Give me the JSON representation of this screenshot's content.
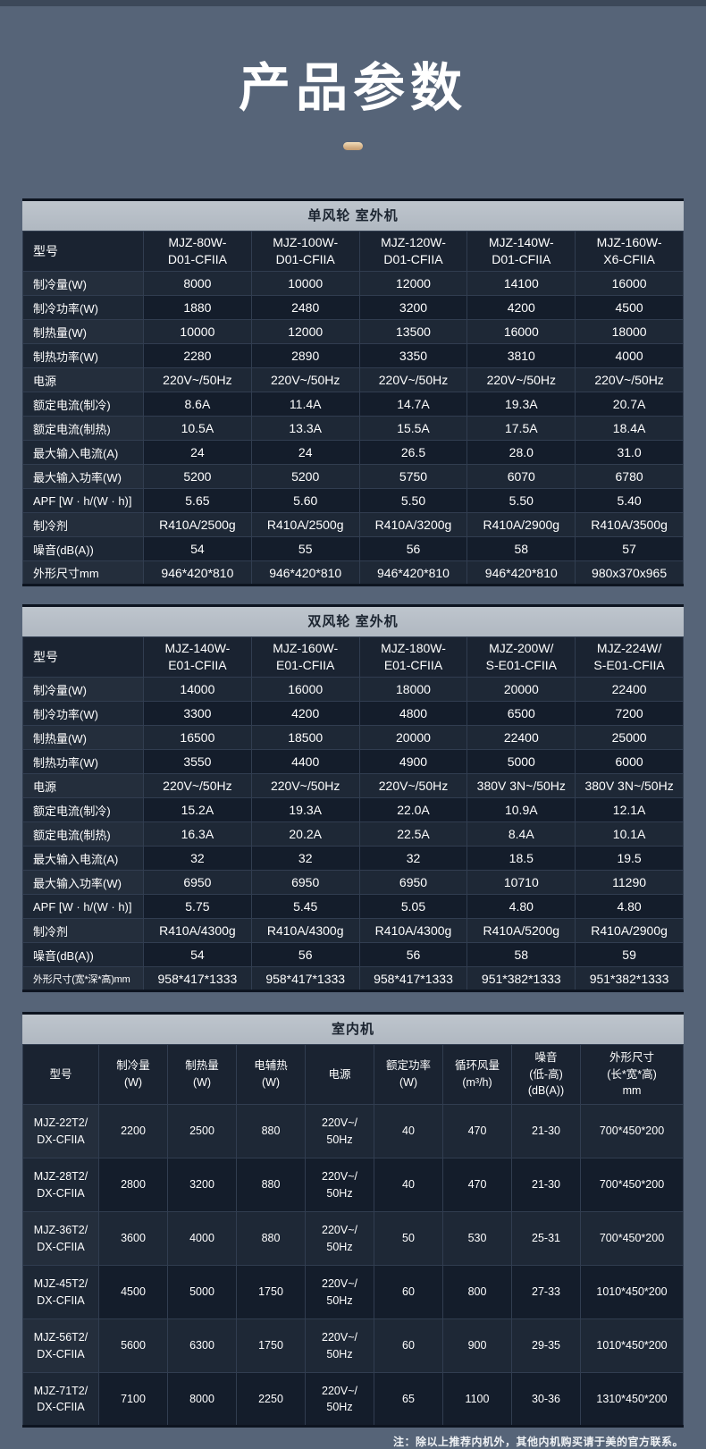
{
  "page": {
    "title": "产品参数",
    "note": "注：除以上推荐内机外，其他内机购买请于美的官方联系。"
  },
  "colors": {
    "page_background": "#566478",
    "section_header_bg": "#b4bcc4",
    "section_header_text": "#1b2430",
    "table_header_bg": "#1a2331",
    "row_odd_bg": "#1e2836",
    "row_even_bg": "#141d2b",
    "grid_border": "#313d50",
    "accent_pill": "#d9b68c",
    "text": "#ffffff"
  },
  "tables": {
    "outdoor_single": {
      "title": "单风轮 室外机",
      "model_label": "型号",
      "models": [
        "MJZ-80W-\nD01-CFIIA",
        "MJZ-100W-\nD01-CFIIA",
        "MJZ-120W-\nD01-CFIIA",
        "MJZ-140W-\nD01-CFIIA",
        "MJZ-160W-\nX6-CFIIA"
      ],
      "rows": [
        {
          "label": "制冷量(W)",
          "values": [
            "8000",
            "10000",
            "12000",
            "14100",
            "16000"
          ]
        },
        {
          "label": "制冷功率(W)",
          "values": [
            "1880",
            "2480",
            "3200",
            "4200",
            "4500"
          ]
        },
        {
          "label": "制热量(W)",
          "values": [
            "10000",
            "12000",
            "13500",
            "16000",
            "18000"
          ]
        },
        {
          "label": "制热功率(W)",
          "values": [
            "2280",
            "2890",
            "3350",
            "3810",
            "4000"
          ]
        },
        {
          "label": "电源",
          "values": [
            "220V~/50Hz",
            "220V~/50Hz",
            "220V~/50Hz",
            "220V~/50Hz",
            "220V~/50Hz"
          ]
        },
        {
          "label": "额定电流(制冷)",
          "values": [
            "8.6A",
            "11.4A",
            "14.7A",
            "19.3A",
            "20.7A"
          ]
        },
        {
          "label": "额定电流(制热)",
          "values": [
            "10.5A",
            "13.3A",
            "15.5A",
            "17.5A",
            "18.4A"
          ]
        },
        {
          "label": "最大输入电流(A)",
          "values": [
            "24",
            "24",
            "26.5",
            "28.0",
            "31.0"
          ]
        },
        {
          "label": "最大输入功率(W)",
          "values": [
            "5200",
            "5200",
            "5750",
            "6070",
            "6780"
          ]
        },
        {
          "label": "APF [W · h/(W · h)]",
          "values": [
            "5.65",
            "5.60",
            "5.50",
            "5.50",
            "5.40"
          ]
        },
        {
          "label": "制冷剂",
          "values": [
            "R410A/2500g",
            "R410A/2500g",
            "R410A/3200g",
            "R410A/2900g",
            "R410A/3500g"
          ]
        },
        {
          "label": "噪音(dB(A))",
          "values": [
            "54",
            "55",
            "56",
            "58",
            "57"
          ]
        },
        {
          "label": "外形尺寸mm",
          "values": [
            "946*420*810",
            "946*420*810",
            "946*420*810",
            "946*420*810",
            "980x370x965"
          ]
        }
      ]
    },
    "outdoor_double": {
      "title": "双风轮 室外机",
      "model_label": "型号",
      "models": [
        "MJZ-140W-\nE01-CFIIA",
        "MJZ-160W-\nE01-CFIIA",
        "MJZ-180W-\nE01-CFIIA",
        "MJZ-200W/\nS-E01-CFIIA",
        "MJZ-224W/\nS-E01-CFIIA"
      ],
      "rows": [
        {
          "label": "制冷量(W)",
          "values": [
            "14000",
            "16000",
            "18000",
            "20000",
            "22400"
          ]
        },
        {
          "label": "制冷功率(W)",
          "values": [
            "3300",
            "4200",
            "4800",
            "6500",
            "7200"
          ]
        },
        {
          "label": "制热量(W)",
          "values": [
            "16500",
            "18500",
            "20000",
            "22400",
            "25000"
          ]
        },
        {
          "label": "制热功率(W)",
          "values": [
            "3550",
            "4400",
            "4900",
            "5000",
            "6000"
          ]
        },
        {
          "label": "电源",
          "values": [
            "220V~/50Hz",
            "220V~/50Hz",
            "220V~/50Hz",
            "380V 3N~/50Hz",
            "380V 3N~/50Hz"
          ]
        },
        {
          "label": "额定电流(制冷)",
          "values": [
            "15.2A",
            "19.3A",
            "22.0A",
            "10.9A",
            "12.1A"
          ]
        },
        {
          "label": "额定电流(制热)",
          "values": [
            "16.3A",
            "20.2A",
            "22.5A",
            "8.4A",
            "10.1A"
          ]
        },
        {
          "label": "最大输入电流(A)",
          "values": [
            "32",
            "32",
            "32",
            "18.5",
            "19.5"
          ]
        },
        {
          "label": "最大输入功率(W)",
          "values": [
            "6950",
            "6950",
            "6950",
            "10710",
            "11290"
          ]
        },
        {
          "label": "APF [W · h/(W · h)]",
          "values": [
            "5.75",
            "5.45",
            "5.05",
            "4.80",
            "4.80"
          ]
        },
        {
          "label": "制冷剂",
          "values": [
            "R410A/4300g",
            "R410A/4300g",
            "R410A/4300g",
            "R410A/5200g",
            "R410A/2900g"
          ]
        },
        {
          "label": "噪音(dB(A))",
          "values": [
            "54",
            "56",
            "56",
            "58",
            "59"
          ]
        },
        {
          "label": "外形尺寸(宽*深*高)mm",
          "values": [
            "958*417*1333",
            "958*417*1333",
            "958*417*1333",
            "951*382*1333",
            "951*382*1333"
          ]
        }
      ]
    },
    "indoor": {
      "title": "室内机",
      "headers": [
        "型号",
        "制冷量\n(W)",
        "制热量\n(W)",
        "电辅热\n(W)",
        "电源",
        "额定功率\n(W)",
        "循环风量\n(m³/h)",
        "噪音\n(低-高)\n(dB(A))",
        "外形尺寸\n(长*宽*高)\nmm"
      ],
      "rows": [
        {
          "model": "MJZ-22T2/\nDX-CFIIA",
          "values": [
            "2200",
            "2500",
            "880",
            "220V~/\n50Hz",
            "40",
            "470",
            "21-30",
            "700*450*200"
          ]
        },
        {
          "model": "MJZ-28T2/\nDX-CFIIA",
          "values": [
            "2800",
            "3200",
            "880",
            "220V~/\n50Hz",
            "40",
            "470",
            "21-30",
            "700*450*200"
          ]
        },
        {
          "model": "MJZ-36T2/\nDX-CFIIA",
          "values": [
            "3600",
            "4000",
            "880",
            "220V~/\n50Hz",
            "50",
            "530",
            "25-31",
            "700*450*200"
          ]
        },
        {
          "model": "MJZ-45T2/\nDX-CFIIA",
          "values": [
            "4500",
            "5000",
            "1750",
            "220V~/\n50Hz",
            "60",
            "800",
            "27-33",
            "1010*450*200"
          ]
        },
        {
          "model": "MJZ-56T2/\nDX-CFIIA",
          "values": [
            "5600",
            "6300",
            "1750",
            "220V~/\n50Hz",
            "60",
            "900",
            "29-35",
            "1010*450*200"
          ]
        },
        {
          "model": "MJZ-71T2/\nDX-CFIIA",
          "values": [
            "7100",
            "8000",
            "2250",
            "220V~/\n50Hz",
            "65",
            "1100",
            "30-36",
            "1310*450*200"
          ]
        }
      ]
    }
  }
}
